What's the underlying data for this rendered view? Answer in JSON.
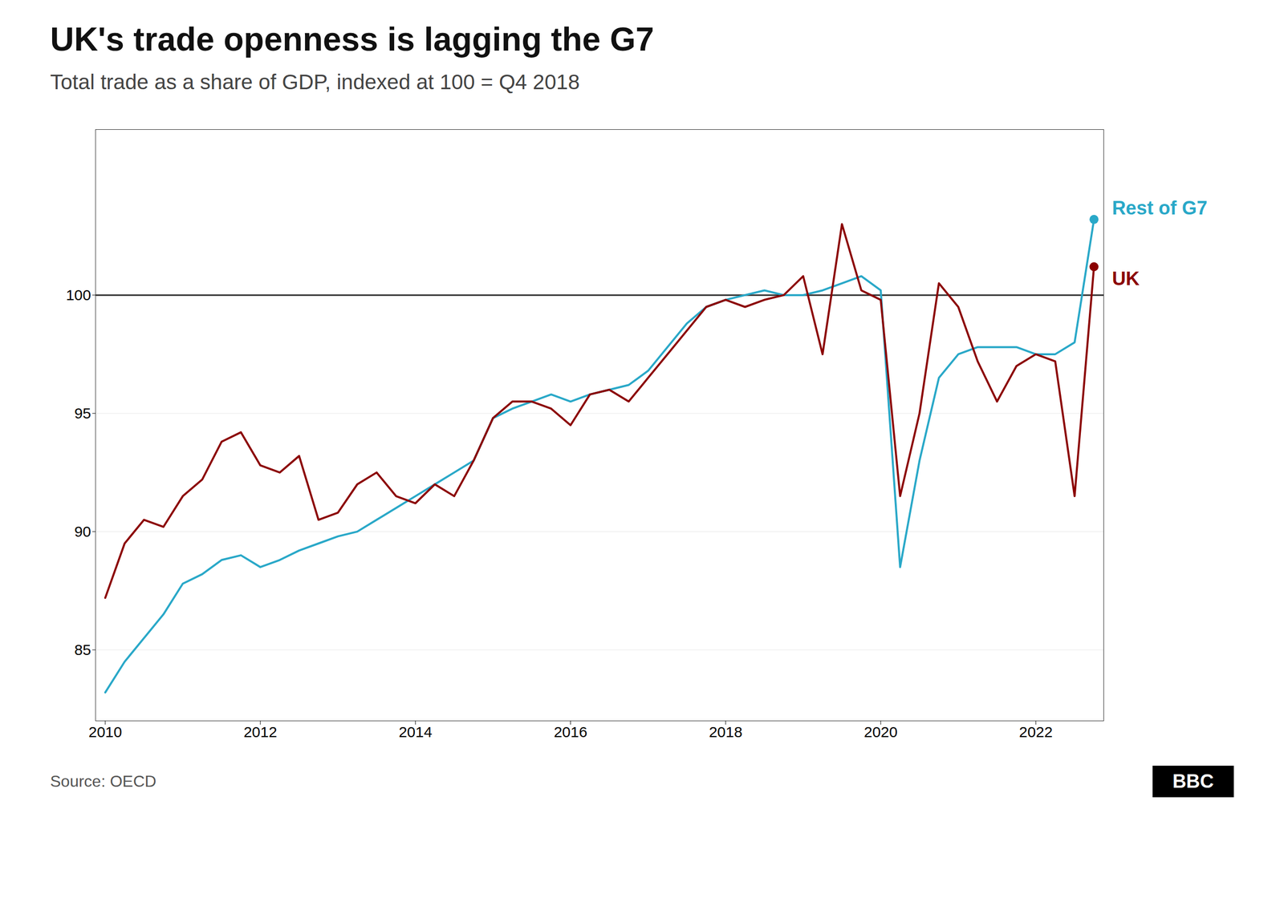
{
  "chart_data": {
    "type": "line",
    "title": "UK's trade openness is lagging the G7",
    "subtitle": "Total trade as a share of GDP, indexed at 100 = Q4 2018",
    "source": "Source: OECD",
    "annotations": [
      "BBC"
    ],
    "categories": [
      "2010",
      null,
      null,
      null,
      null,
      null,
      null,
      null,
      "2012",
      null,
      null,
      null,
      null,
      null,
      null,
      null,
      "2014",
      null,
      null,
      null,
      null,
      null,
      null,
      null,
      "2016",
      null,
      null,
      null,
      null,
      null,
      null,
      null,
      "2018",
      null,
      null,
      null,
      null,
      null,
      null,
      null,
      "2020",
      null,
      null,
      null,
      null,
      null,
      null,
      null,
      "2022",
      null,
      null,
      null
    ],
    "series": [
      {
        "name": "Rest of G7",
        "color": "#29a8c8",
        "values": [
          83.2,
          84.5,
          85.5,
          86.5,
          87.8,
          88.2,
          88.8,
          89.0,
          88.5,
          88.8,
          89.2,
          89.5,
          89.8,
          90.0,
          90.5,
          91.0,
          91.5,
          92.0,
          92.5,
          93.0,
          94.8,
          95.2,
          95.5,
          95.8,
          95.5,
          95.8,
          96.0,
          96.2,
          96.8,
          97.8,
          98.8,
          99.5,
          99.8,
          100.0,
          100.2,
          100.0,
          100.0,
          100.2,
          100.5,
          100.8,
          100.2,
          88.5,
          93.0,
          96.5,
          97.5,
          97.8,
          97.8,
          97.8,
          97.5,
          97.5,
          98.0,
          103.2
        ]
      },
      {
        "name": "UK",
        "color": "#8b0000",
        "values": [
          87.2,
          89.5,
          90.5,
          90.2,
          91.5,
          92.2,
          93.8,
          94.2,
          92.8,
          92.5,
          93.2,
          90.5,
          90.8,
          92.0,
          92.5,
          91.5,
          91.2,
          92.0,
          91.5,
          93.0,
          94.8,
          95.5,
          95.5,
          95.2,
          94.5,
          95.8,
          96.0,
          95.5,
          96.5,
          97.5,
          98.5,
          99.5,
          99.8,
          99.5,
          99.8,
          100.0,
          100.8,
          97.5,
          103.0,
          100.2,
          99.8,
          91.5,
          95.0,
          100.5,
          99.5,
          97.2,
          95.5,
          97.0,
          97.5,
          97.2,
          91.5,
          101.2
        ]
      }
    ],
    "reference_line": {
      "y": 100,
      "color": "#2a2a2a"
    },
    "ylim": [
      82,
      107
    ],
    "yticks": [
      85,
      90,
      95,
      100
    ],
    "grid": true
  }
}
